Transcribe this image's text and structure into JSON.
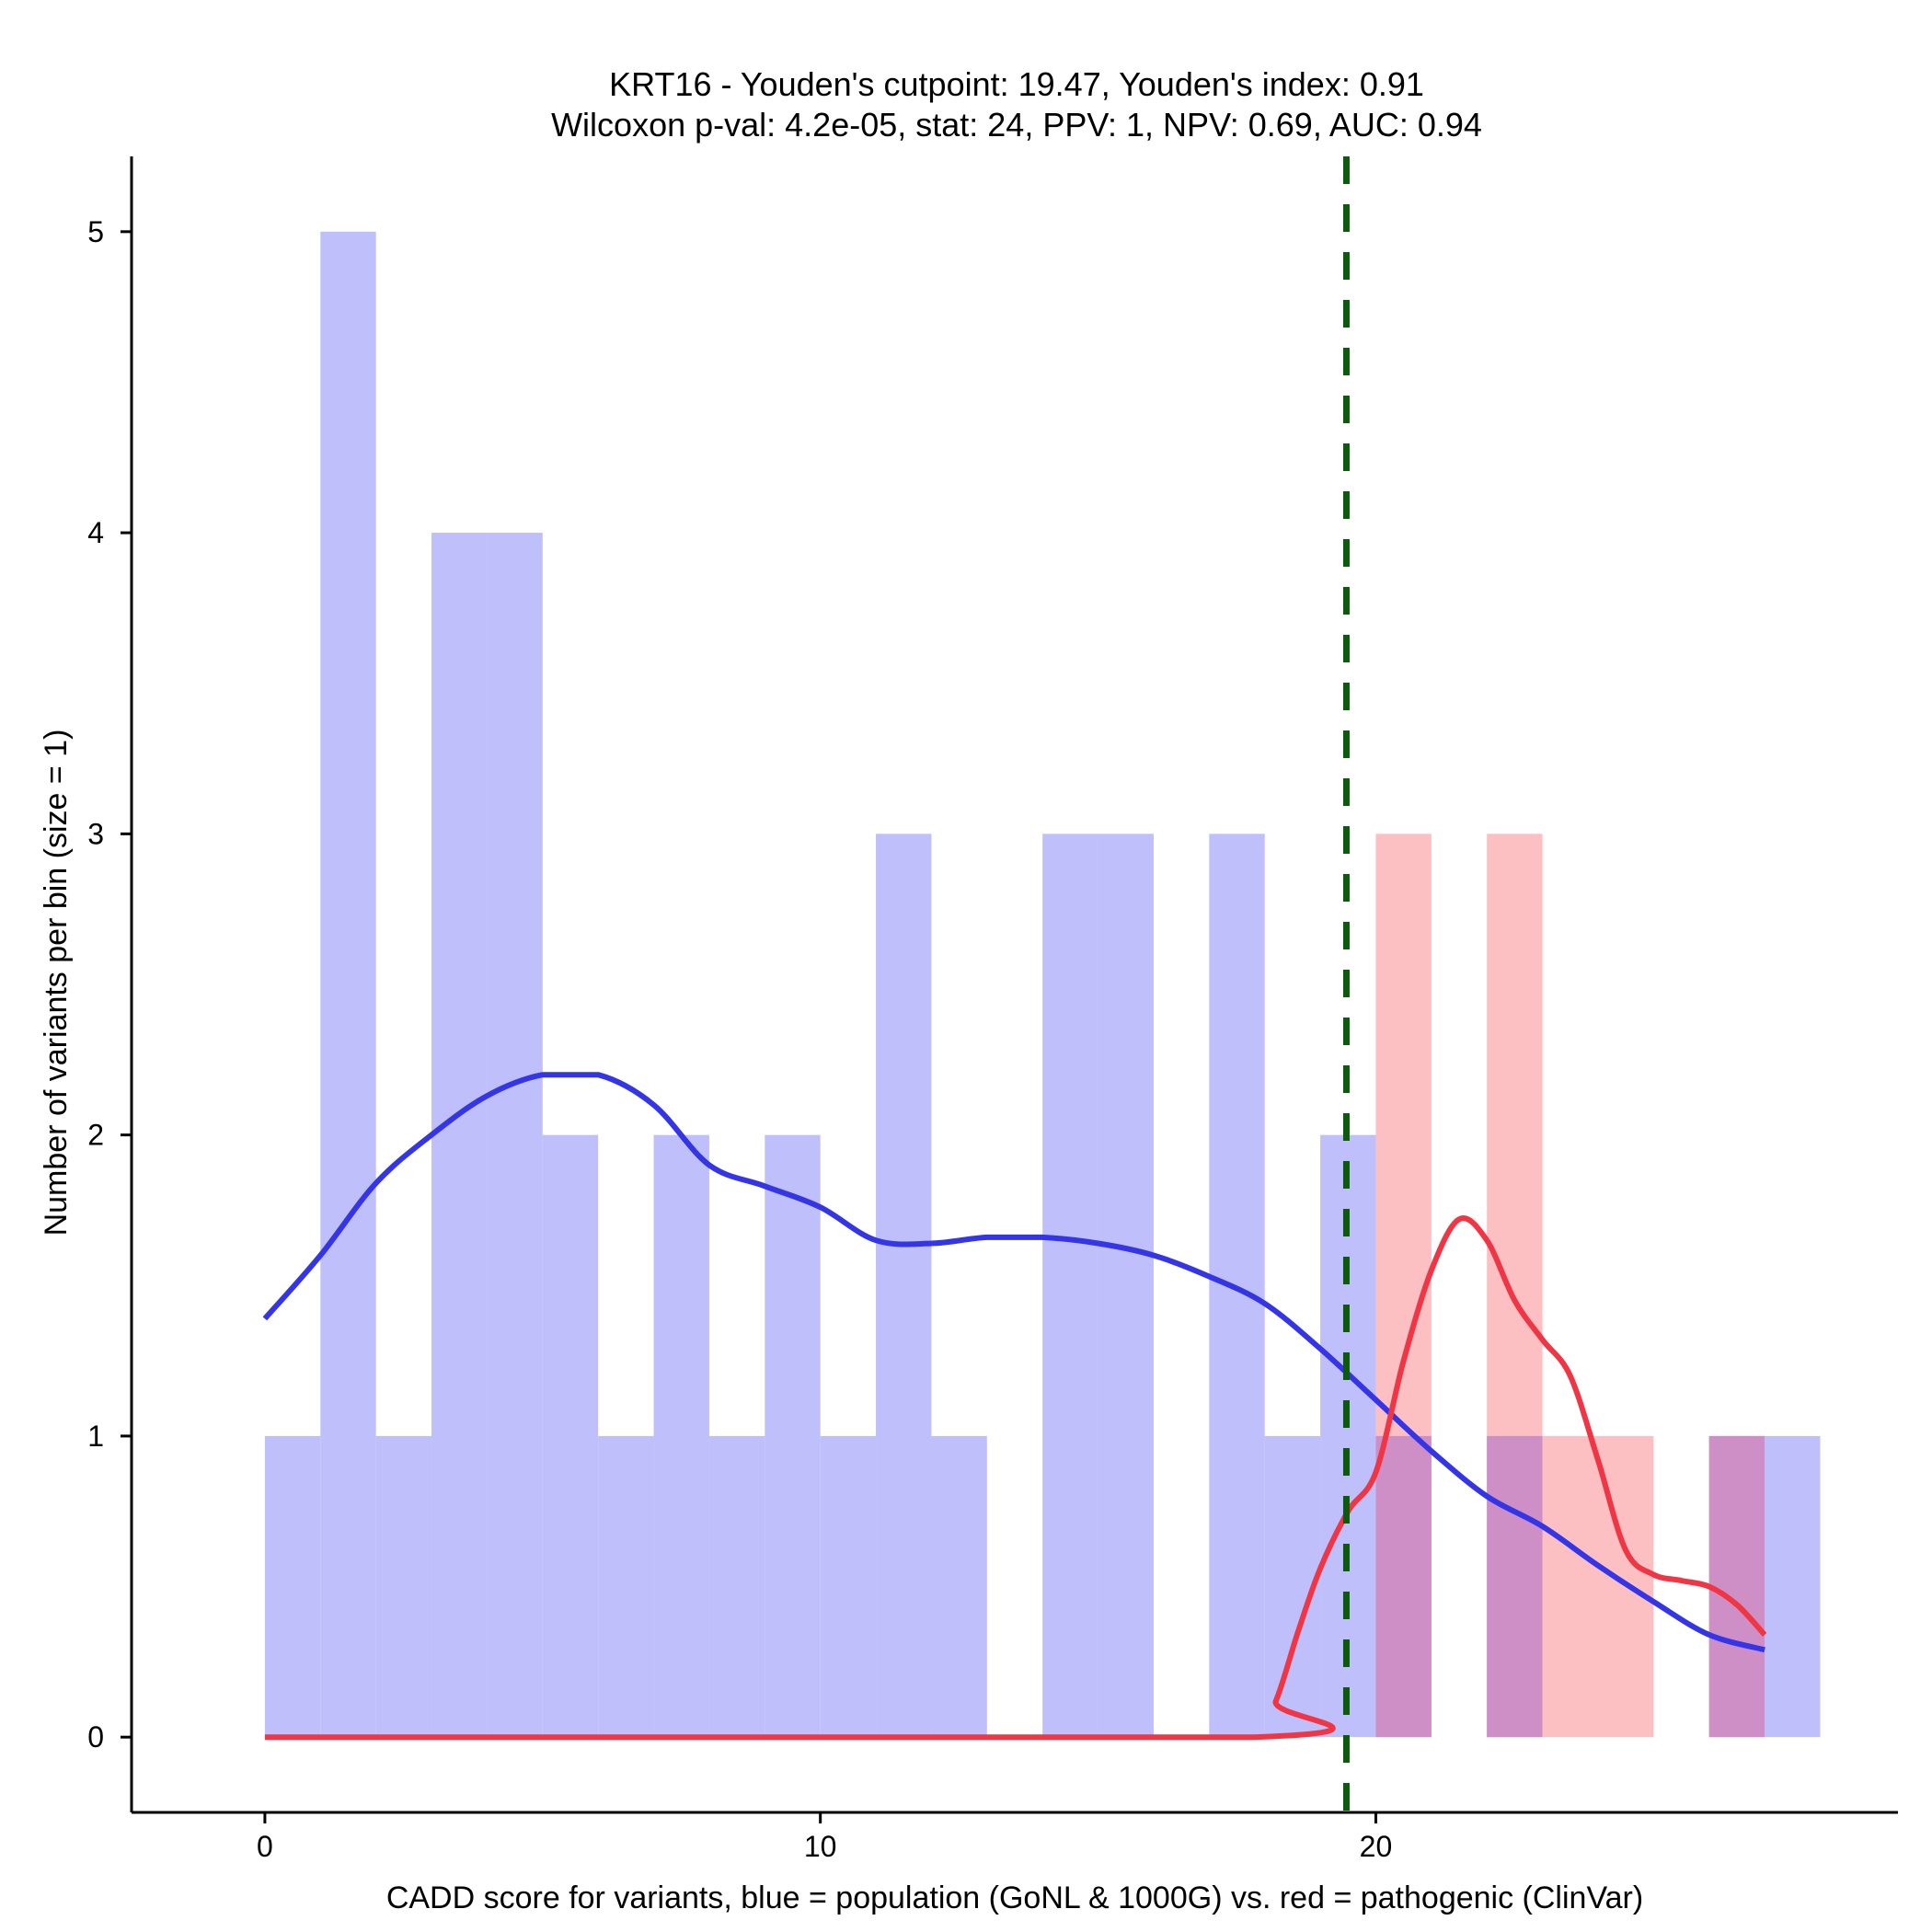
{
  "chart_data": {
    "type": "histogram",
    "title": "KRT16 - Youden's cutpoint: 19.47, Youden's index: 0.91",
    "subtitle": "Wilcoxon p-val: 4.2e-05, stat: 24, PPV: 1, NPV: 0.69, AUC: 0.94",
    "xlabel": "CADD score for variants, blue = population (GoNL & 1000G) vs. red = pathogenic (ClinVar)",
    "ylabel": "Number of variants per bin (size = 1)",
    "xlim": [
      -2.4,
      29.4
    ],
    "ylim": [
      -0.25,
      5.25
    ],
    "x_ticks": [
      0,
      10,
      20
    ],
    "y_ticks": [
      0,
      1,
      2,
      3,
      4,
      5
    ],
    "bin_width": 1,
    "cutpoint": 19.47,
    "colors": {
      "population_bar": "#bfbffb",
      "pathogenic_bar": "#fcbfc2",
      "overlap_bar": "#cd8fc5",
      "population_line": "#3535e8",
      "pathogenic_line": "#f03544",
      "cutpoint_line": "#0c5a0c"
    },
    "series": [
      {
        "name": "population (GoNL & 1000G)",
        "bins": [
          {
            "x0": 0,
            "count": 1
          },
          {
            "x0": 1,
            "count": 5
          },
          {
            "x0": 2,
            "count": 1
          },
          {
            "x0": 3,
            "count": 4
          },
          {
            "x0": 4,
            "count": 4
          },
          {
            "x0": 5,
            "count": 2
          },
          {
            "x0": 6,
            "count": 1
          },
          {
            "x0": 7,
            "count": 2
          },
          {
            "x0": 8,
            "count": 1
          },
          {
            "x0": 9,
            "count": 2
          },
          {
            "x0": 10,
            "count": 1
          },
          {
            "x0": 11,
            "count": 3
          },
          {
            "x0": 12,
            "count": 1
          },
          {
            "x0": 14,
            "count": 3
          },
          {
            "x0": 15,
            "count": 3
          },
          {
            "x0": 17,
            "count": 3
          },
          {
            "x0": 18,
            "count": 1
          },
          {
            "x0": 19,
            "count": 2
          },
          {
            "x0": 20,
            "count": 1
          },
          {
            "x0": 22,
            "count": 1
          },
          {
            "x0": 26,
            "count": 1
          },
          {
            "x0": 27,
            "count": 1
          }
        ],
        "density": [
          [
            0,
            1.39
          ],
          [
            1,
            1.6
          ],
          [
            2,
            1.84
          ],
          [
            3,
            2.0
          ],
          [
            4,
            2.13
          ],
          [
            5,
            2.2
          ],
          [
            6,
            2.2
          ],
          [
            7,
            2.1
          ],
          [
            8,
            1.9
          ],
          [
            9,
            1.83
          ],
          [
            10,
            1.76
          ],
          [
            11,
            1.65
          ],
          [
            12,
            1.64
          ],
          [
            13,
            1.66
          ],
          [
            14,
            1.66
          ],
          [
            15,
            1.64
          ],
          [
            16,
            1.6
          ],
          [
            17,
            1.53
          ],
          [
            18,
            1.44
          ],
          [
            19,
            1.29
          ],
          [
            20,
            1.12
          ],
          [
            21,
            0.95
          ],
          [
            22,
            0.8
          ],
          [
            23,
            0.7
          ],
          [
            24,
            0.57
          ],
          [
            25,
            0.45
          ],
          [
            26,
            0.34
          ],
          [
            27,
            0.29
          ]
        ]
      },
      {
        "name": "pathogenic (ClinVar)",
        "bins": [
          {
            "x0": 20,
            "count": 3
          },
          {
            "x0": 22,
            "count": 3
          },
          {
            "x0": 23,
            "count": 1
          },
          {
            "x0": 24,
            "count": 1
          },
          {
            "x0": 26,
            "count": 1
          }
        ],
        "density": [
          [
            0,
            0
          ],
          [
            17.8,
            0
          ],
          [
            18.2,
            0.12
          ],
          [
            18.6,
            0.35
          ],
          [
            19.0,
            0.56
          ],
          [
            19.5,
            0.75
          ],
          [
            20.0,
            0.88
          ],
          [
            20.5,
            1.25
          ],
          [
            21.0,
            1.55
          ],
          [
            21.5,
            1.72
          ],
          [
            22.0,
            1.65
          ],
          [
            22.5,
            1.45
          ],
          [
            23.0,
            1.32
          ],
          [
            23.5,
            1.2
          ],
          [
            24.0,
            0.92
          ],
          [
            24.5,
            0.62
          ],
          [
            25.0,
            0.54
          ],
          [
            25.5,
            0.52
          ],
          [
            26.0,
            0.5
          ],
          [
            26.5,
            0.44
          ],
          [
            27.0,
            0.34
          ]
        ]
      }
    ]
  }
}
